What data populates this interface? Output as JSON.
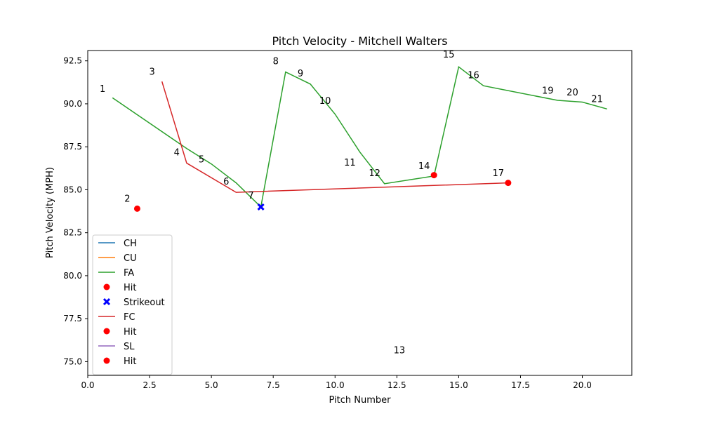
{
  "chart_data": {
    "type": "line",
    "title": "Pitch Velocity - Mitchell Walters",
    "xlabel": "Pitch Number",
    "ylabel": "Pitch Velocity (MPH)",
    "xlim": [
      0,
      22
    ],
    "ylim": [
      74.2,
      93.1
    ],
    "xticks": [
      0,
      2.5,
      5,
      7.5,
      10,
      12.5,
      15,
      17.5,
      20
    ],
    "xtick_labels": [
      "0.0",
      "2.5",
      "5.0",
      "7.5",
      "10.0",
      "12.5",
      "15.0",
      "17.5",
      "20.0"
    ],
    "yticks": [
      75,
      77.5,
      80,
      82.5,
      85,
      87.5,
      90,
      92.5
    ],
    "ytick_labels": [
      "75.0",
      "77.5",
      "80.0",
      "82.5",
      "85.0",
      "87.5",
      "90.0",
      "92.5"
    ],
    "grid": false,
    "legend_position": "lower-left",
    "series": [
      {
        "name": "CH",
        "kind": "line",
        "color": "#1f77b4",
        "x": [
          13
        ],
        "y": [
          75.6
        ]
      },
      {
        "name": "CU",
        "kind": "line",
        "color": "#ff7f0e",
        "x": [],
        "y": []
      },
      {
        "name": "FA",
        "kind": "line",
        "color": "#2ca02c",
        "x": [
          1,
          4,
          5,
          6,
          7,
          8,
          9,
          10,
          11,
          12,
          14,
          15,
          16,
          19,
          20,
          21
        ],
        "y": [
          90.35,
          87.4,
          86.5,
          85.4,
          84.0,
          91.85,
          91.15,
          89.4,
          87.2,
          85.35,
          85.8,
          92.15,
          91.05,
          90.2,
          90.1,
          89.7
        ]
      },
      {
        "name": "Hit",
        "kind": "scatter",
        "marker": "circle",
        "color": "#ff0000",
        "x": [
          2
        ],
        "y": [
          83.9
        ]
      },
      {
        "name": "Strikeout",
        "kind": "scatter",
        "marker": "x",
        "color": "#0000ff",
        "x": [
          7
        ],
        "y": [
          84.0
        ]
      },
      {
        "name": "FC",
        "kind": "line",
        "color": "#d62728",
        "x": [
          3,
          4,
          6,
          17
        ],
        "y": [
          91.3,
          86.55,
          84.85,
          85.4
        ]
      },
      {
        "name": "Hit",
        "kind": "scatter",
        "marker": "circle",
        "color": "#ff0000",
        "x": [
          14,
          17
        ],
        "y": [
          85.85,
          85.4
        ]
      },
      {
        "name": "SL",
        "kind": "line",
        "color": "#9467bd",
        "x": [],
        "y": []
      },
      {
        "name": "Hit",
        "kind": "scatter",
        "marker": "circle",
        "color": "#ff0000",
        "x": [],
        "y": []
      }
    ],
    "annotations": [
      {
        "text": "1",
        "x": 0.6,
        "y": 90.9
      },
      {
        "text": "2",
        "x": 1.6,
        "y": 84.5
      },
      {
        "text": "3",
        "x": 2.6,
        "y": 91.9
      },
      {
        "text": "4",
        "x": 3.6,
        "y": 87.2
      },
      {
        "text": "5",
        "x": 4.6,
        "y": 86.8
      },
      {
        "text": "6",
        "x": 5.6,
        "y": 85.5
      },
      {
        "text": "7",
        "x": 6.6,
        "y": 84.7
      },
      {
        "text": "8",
        "x": 7.6,
        "y": 92.5
      },
      {
        "text": "9",
        "x": 8.6,
        "y": 91.8
      },
      {
        "text": "10",
        "x": 9.6,
        "y": 90.2
      },
      {
        "text": "11",
        "x": 10.6,
        "y": 86.6
      },
      {
        "text": "12",
        "x": 11.6,
        "y": 86.0
      },
      {
        "text": "13",
        "x": 12.6,
        "y": 75.7
      },
      {
        "text": "14",
        "x": 13.6,
        "y": 86.4
      },
      {
        "text": "15",
        "x": 14.6,
        "y": 92.9
      },
      {
        "text": "16",
        "x": 15.6,
        "y": 91.7
      },
      {
        "text": "17",
        "x": 16.6,
        "y": 86.0
      },
      {
        "text": "19",
        "x": 18.6,
        "y": 90.8
      },
      {
        "text": "20",
        "x": 19.6,
        "y": 90.7
      },
      {
        "text": "21",
        "x": 20.6,
        "y": 90.3
      }
    ]
  }
}
